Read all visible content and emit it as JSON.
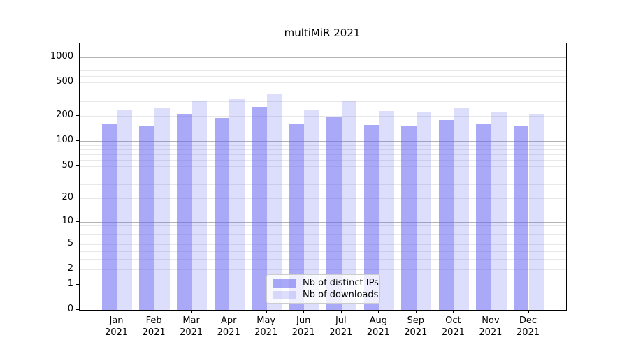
{
  "title": "multiMiR 2021",
  "chart_data": {
    "type": "bar",
    "title": "multiMiR 2021",
    "categories": [
      "Jan",
      "Feb",
      "Mar",
      "Apr",
      "May",
      "Jun",
      "Jul",
      "Aug",
      "Sep",
      "Oct",
      "Nov",
      "Dec"
    ],
    "year": "2021",
    "series": [
      {
        "name": "Nb of distinct IPs",
        "color": "rgba(98,98,240,0.55)",
        "values": [
          158,
          153,
          212,
          190,
          250,
          162,
          198,
          155,
          151,
          178,
          163,
          149
        ]
      },
      {
        "name": "Nb of downloads",
        "color": "rgba(98,98,240,0.22)",
        "values": [
          240,
          248,
          300,
          315,
          367,
          233,
          305,
          230,
          220,
          248,
          226,
          206
        ]
      }
    ],
    "y_axis": {
      "scale": "log1p",
      "ticks": [
        0,
        1,
        2,
        5,
        10,
        20,
        50,
        100,
        200,
        500,
        1000
      ],
      "major_gridlines": [
        1,
        10,
        100,
        1000
      ],
      "minor_gridlines": [
        2,
        3,
        4,
        5,
        6,
        7,
        8,
        9,
        20,
        30,
        40,
        50,
        60,
        70,
        80,
        90,
        200,
        300,
        400,
        500,
        600,
        700,
        800,
        900
      ],
      "ymax": 1460
    },
    "legend_position": "lower center",
    "grid": true
  },
  "colors": {
    "major_grid": "#b3b3b3",
    "minor_grid": "#e8e8e8",
    "spine": "#000000",
    "legend_border": "#cccccc"
  }
}
